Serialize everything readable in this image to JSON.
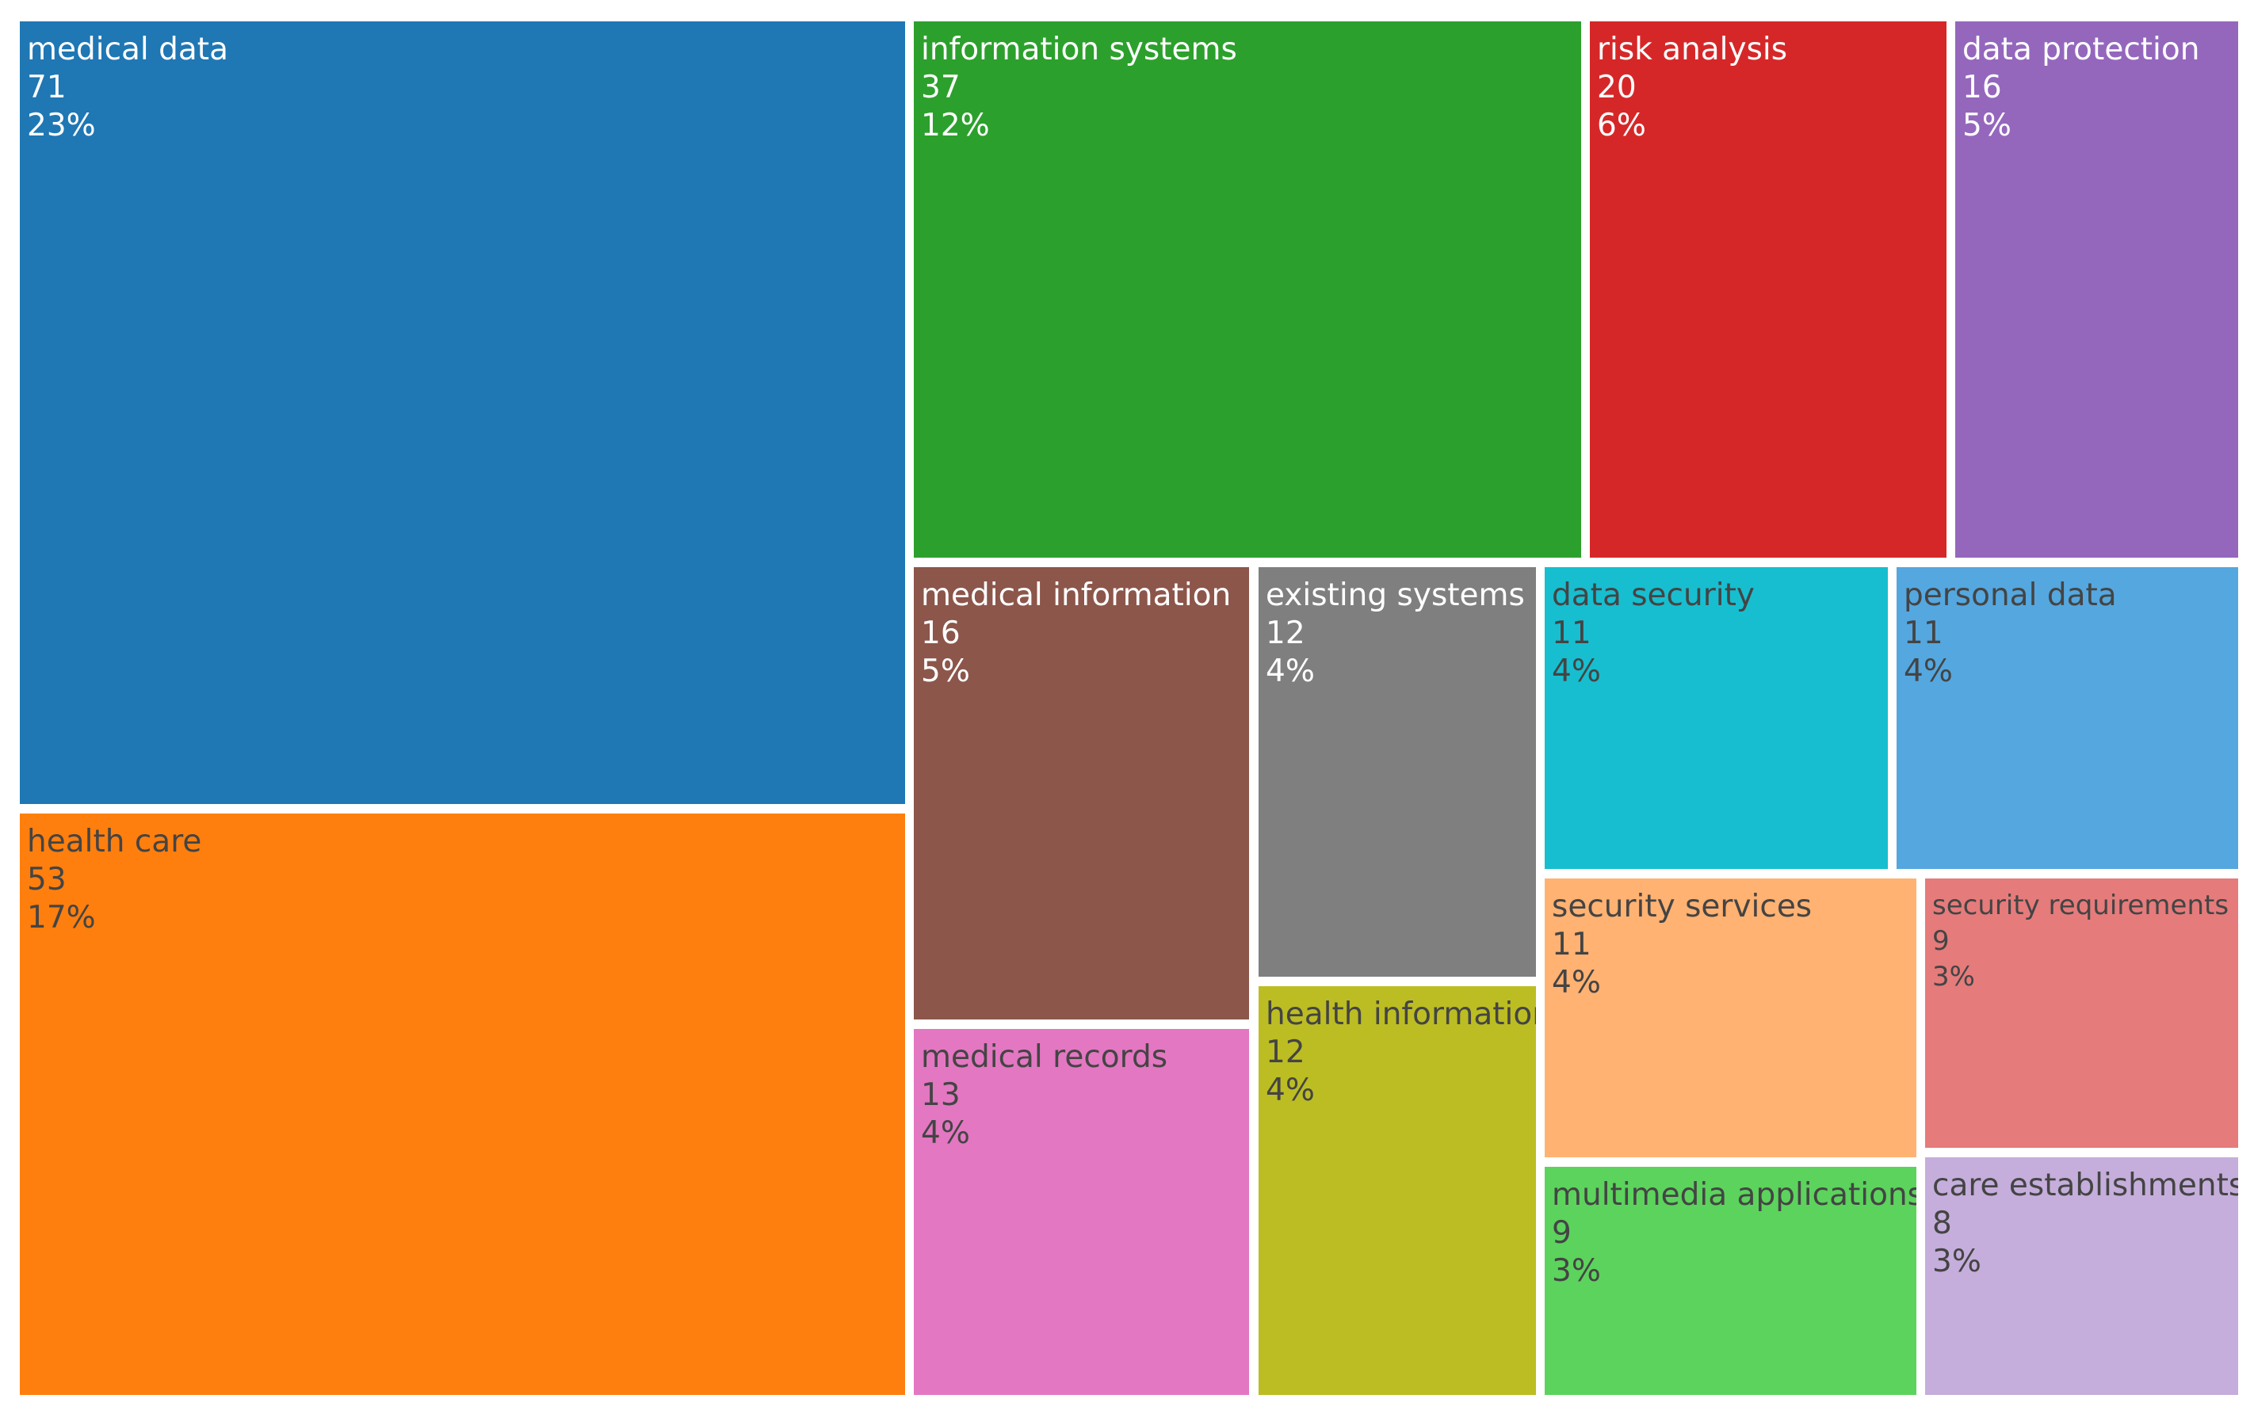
{
  "chart_data": {
    "type": "treemap",
    "title": "",
    "items": [
      {
        "label": "medical data",
        "value": "71",
        "percent": "23%",
        "color": "#1f77b4",
        "text": "light"
      },
      {
        "label": "health care",
        "value": "53",
        "percent": "17%",
        "color": "#ff7f0e",
        "text": "dark"
      },
      {
        "label": "information systems",
        "value": "37",
        "percent": "12%",
        "color": "#2ca02c",
        "text": "light"
      },
      {
        "label": "risk analysis",
        "value": "20",
        "percent": "6%",
        "color": "#d62728",
        "text": "light"
      },
      {
        "label": "data protection",
        "value": "16",
        "percent": "5%",
        "color": "#9467bd",
        "text": "light"
      },
      {
        "label": "medical information",
        "value": "16",
        "percent": "5%",
        "color": "#8c564b",
        "text": "light"
      },
      {
        "label": "medical records",
        "value": "13",
        "percent": "4%",
        "color": "#e377c2",
        "text": "dark"
      },
      {
        "label": "existing systems",
        "value": "12",
        "percent": "4%",
        "color": "#7f7f7f",
        "text": "light"
      },
      {
        "label": "health information",
        "value": "12",
        "percent": "4%",
        "color": "#bcbd22",
        "text": "dark"
      },
      {
        "label": "data security",
        "value": "11",
        "percent": "4%",
        "color": "#17becf",
        "text": "dark"
      },
      {
        "label": "personal data",
        "value": "11",
        "percent": "4%",
        "color": "#55a7df",
        "text": "dark"
      },
      {
        "label": "security services",
        "value": "11",
        "percent": "4%",
        "color": "#ffb272",
        "text": "dark"
      },
      {
        "label": "security requirements",
        "value": "9",
        "percent": "3%",
        "color": "#e57b7b",
        "text": "dark",
        "small": true
      },
      {
        "label": "multimedia applications",
        "value": "9",
        "percent": "3%",
        "color": "#5cd35c",
        "text": "dark"
      },
      {
        "label": "care establishments",
        "value": "8",
        "percent": "3%",
        "color": "#c5aedb",
        "text": "dark"
      }
    ]
  }
}
